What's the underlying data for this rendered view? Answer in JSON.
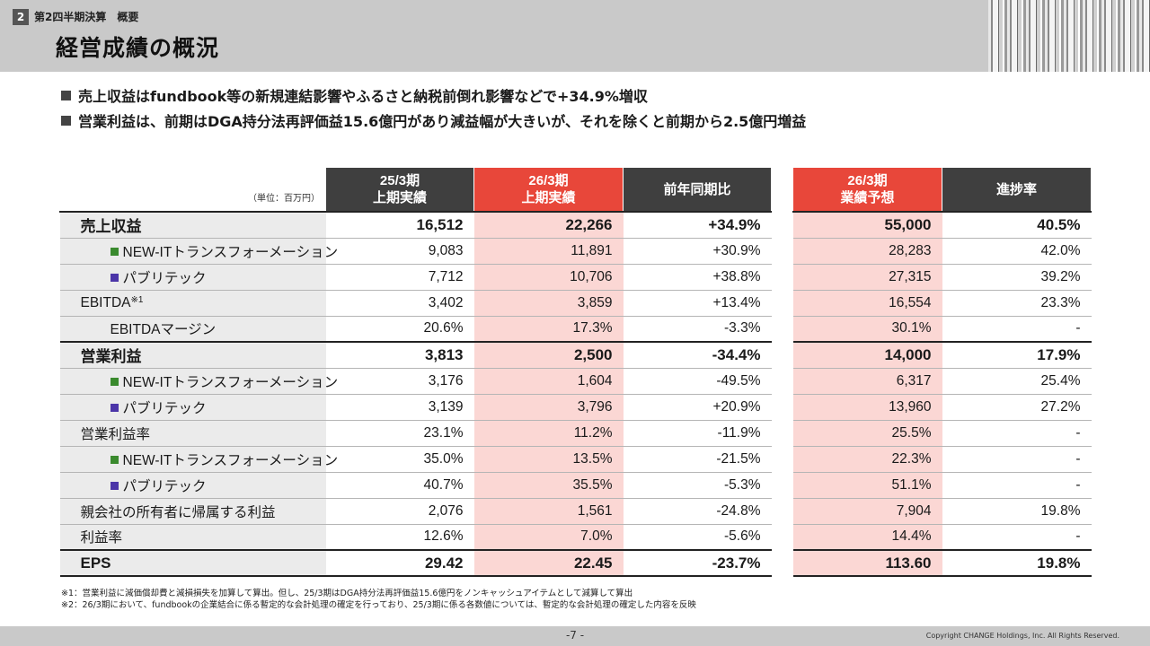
{
  "header": {
    "section_number": "2",
    "section_label": "第2四半期決算　概要",
    "title": "経営成績の概況"
  },
  "bullets": [
    "売上収益はfundbook等の新規連結影響やふるさと納税前倒れ影響などで+34.9%増収",
    "営業利益は、前期はDGA持分法再評価益15.6億円があり減益幅が大きいが、それを除くと前期から2.5億円増益"
  ],
  "table": {
    "unit": "（単位：百万円）",
    "headers": {
      "prev": [
        "25/3期",
        "上期実績"
      ],
      "curr": [
        "26/3期",
        "上期実績"
      ],
      "yoy": "前年同期比",
      "forecast": [
        "26/3期",
        "業績予想"
      ],
      "progress": "進捗率"
    },
    "rows": [
      {
        "label": "売上収益",
        "prev": "16,512",
        "curr": "22,266",
        "yoy": "+34.9%",
        "forecast": "55,000",
        "progress": "40.5%"
      },
      {
        "label": "NEW-ITトランスフォーメーション",
        "prev": "9,083",
        "curr": "11,891",
        "yoy": "+30.9%",
        "forecast": "28,283",
        "progress": "42.0%"
      },
      {
        "label": "パブリテック",
        "prev": "7,712",
        "curr": "10,706",
        "yoy": "+38.8%",
        "forecast": "27,315",
        "progress": "39.2%"
      },
      {
        "label": "EBITDA",
        "note": "※1",
        "prev": "3,402",
        "curr": "3,859",
        "yoy": "+13.4%",
        "forecast": "16,554",
        "progress": "23.3%"
      },
      {
        "label": "EBITDAマージン",
        "prev": "20.6%",
        "curr": "17.3%",
        "yoy": "-3.3%",
        "forecast": "30.1%",
        "progress": "-"
      },
      {
        "label": "営業利益",
        "prev": "3,813",
        "curr": "2,500",
        "yoy": "-34.4%",
        "forecast": "14,000",
        "progress": "17.9%"
      },
      {
        "label": "NEW-ITトランスフォーメーション",
        "prev": "3,176",
        "curr": "1,604",
        "yoy": "-49.5%",
        "forecast": "6,317",
        "progress": "25.4%"
      },
      {
        "label": "パブリテック",
        "prev": "3,139",
        "curr": "3,796",
        "yoy": "+20.9%",
        "forecast": "13,960",
        "progress": "27.2%"
      },
      {
        "label": "営業利益率",
        "prev": "23.1%",
        "curr": "11.2%",
        "yoy": "-11.9%",
        "forecast": "25.5%",
        "progress": "-"
      },
      {
        "label": "NEW-ITトランスフォーメーション",
        "prev": "35.0%",
        "curr": "13.5%",
        "yoy": "-21.5%",
        "forecast": "22.3%",
        "progress": "-"
      },
      {
        "label": "パブリテック",
        "prev": "40.7%",
        "curr": "35.5%",
        "yoy": "-5.3%",
        "forecast": "51.1%",
        "progress": "-"
      },
      {
        "label": "親会社の所有者に帰属する利益",
        "prev": "2,076",
        "curr": "1,561",
        "yoy": "-24.8%",
        "forecast": "7,904",
        "progress": "19.8%"
      },
      {
        "label": "利益率",
        "prev": "12.6%",
        "curr": "7.0%",
        "yoy": "-5.6%",
        "forecast": "14.4%",
        "progress": "-"
      },
      {
        "label": "EPS",
        "prev": "29.42",
        "curr": "22.45",
        "yoy": "-23.7%",
        "forecast": "113.60",
        "progress": "19.8%"
      }
    ]
  },
  "colors": {
    "segment_newit": "#3a8a2e",
    "segment_publitech": "#4b35a8",
    "accent_red": "#e8473a",
    "highlight": "#fbd7d4"
  },
  "footnotes": [
    "※1：営業利益に減価償却費と減損損失を加算して算出。但し、25/3期はDGA持分法再評価益15.6億円をノンキャッシュアイテムとして減算して算出",
    "※2：26/3期において、fundbookの企業結合に係る暫定的な会計処理の確定を行っており、25/3期に係る各数値については、暫定的な会計処理の確定した内容を反映"
  ],
  "footer": {
    "page": "-7 -",
    "copyright": "Copyright CHANGE Holdings, Inc. All Rights Reserved."
  }
}
